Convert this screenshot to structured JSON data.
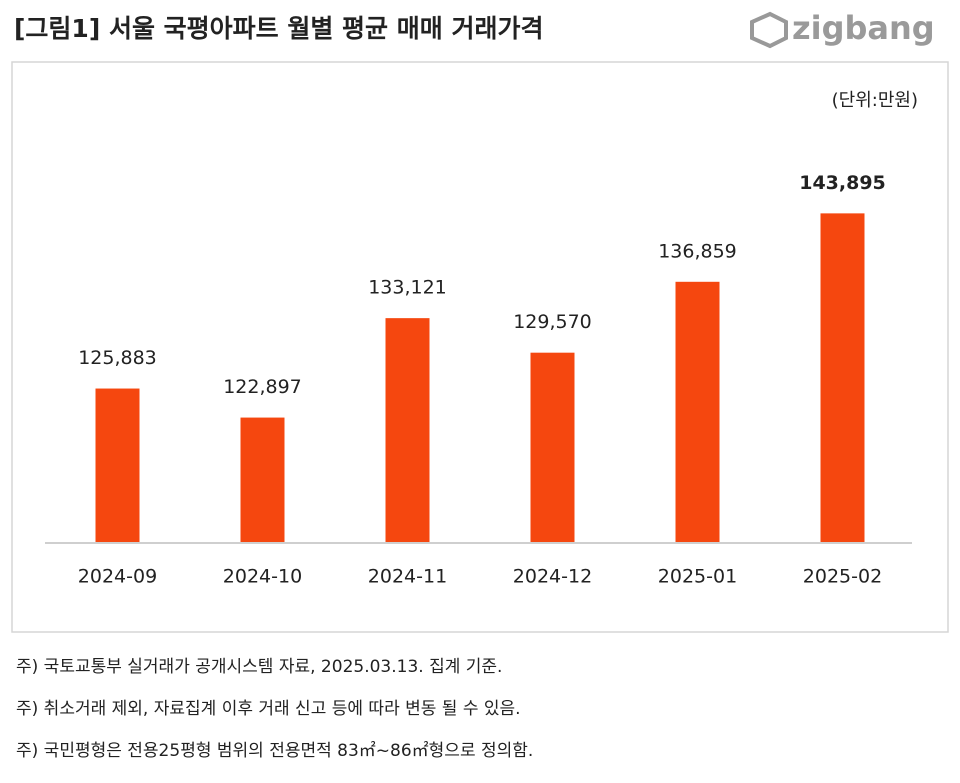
{
  "chart_data": {
    "type": "bar",
    "title": "[그림1] 서울 국평아파트 월별 평균 매매 거래가격",
    "logo": "zigbang",
    "unit": "(단위:만원)",
    "categories": [
      "2024-09",
      "2024-10",
      "2024-11",
      "2024-12",
      "2025-01",
      "2025-02"
    ],
    "values": [
      125883,
      122897,
      133121,
      129570,
      136859,
      143895
    ],
    "value_labels": [
      "125,883",
      "122,897",
      "133,121",
      "129,570",
      "136,859",
      "143,895"
    ],
    "color": "#f5470f",
    "ylim": [
      110000,
      150000
    ],
    "notes": [
      "주) 국토교통부 실거래가 공개시스템 자료, 2025.03.13. 집계 기준.",
      "주) 취소거래 제외, 자료집계 이후 거래 신고 등에 따라 변동 될 수 있음.",
      "주) 국민평형은 전용25평형 범위의 전용면적 83㎡~86㎡형으로 정의함."
    ]
  }
}
